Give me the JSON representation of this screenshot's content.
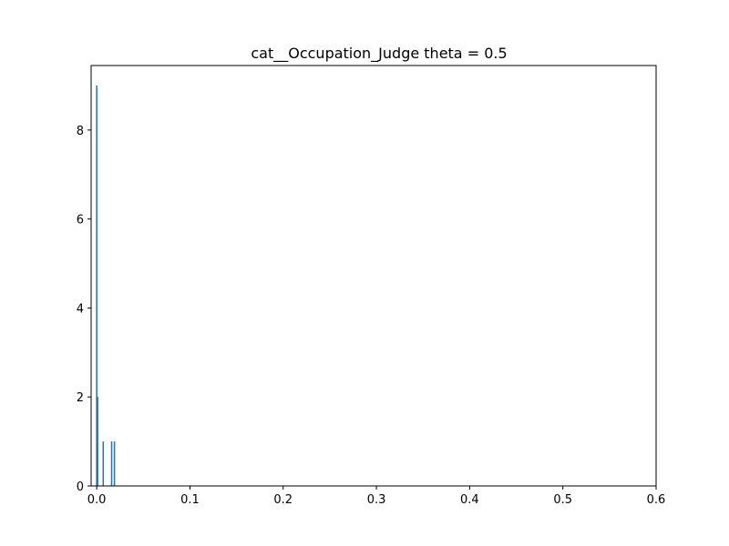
{
  "chart_data": {
    "type": "bar",
    "title": "cat__Occupation_Judge theta = 0.5",
    "xlabel": "",
    "ylabel": "",
    "xlim": [
      -0.006,
      0.6
    ],
    "ylim": [
      0,
      9.45
    ],
    "bar_width": 0.0015,
    "x": [
      0.0,
      0.001,
      0.007,
      0.016,
      0.019
    ],
    "values": [
      9,
      2,
      1,
      1,
      1
    ],
    "x_ticks": [
      0.0,
      0.1,
      0.2,
      0.3,
      0.4,
      0.5,
      0.6
    ],
    "x_tick_labels": [
      "0.0",
      "0.1",
      "0.2",
      "0.3",
      "0.4",
      "0.5",
      "0.6"
    ],
    "y_ticks": [
      0,
      2,
      4,
      6,
      8
    ],
    "y_tick_labels": [
      "0",
      "2",
      "4",
      "6",
      "8"
    ],
    "grid": false,
    "legend": "none",
    "bar_color": "#1f77b4"
  }
}
